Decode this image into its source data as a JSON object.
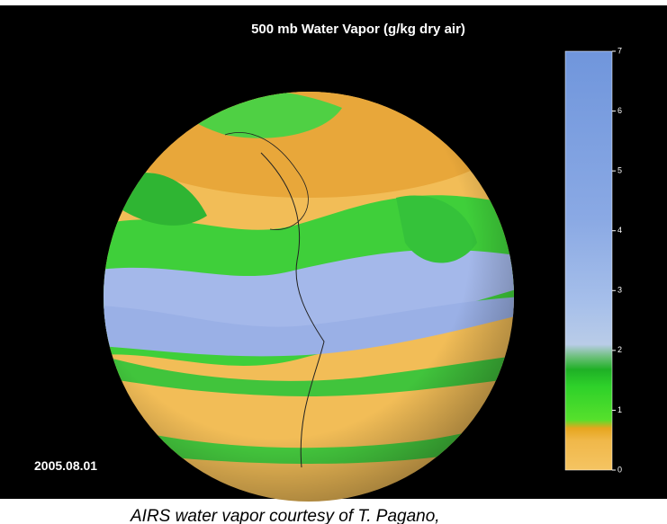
{
  "header": {
    "title": "500 mb Water Vapor (g/kg dry air)"
  },
  "colorbar": {
    "ticks": [
      0,
      1,
      2,
      3,
      4,
      5,
      6,
      7
    ]
  },
  "date": "2005.08.01",
  "caption": "AIRS water vapor courtesy of T. Pagano,"
}
